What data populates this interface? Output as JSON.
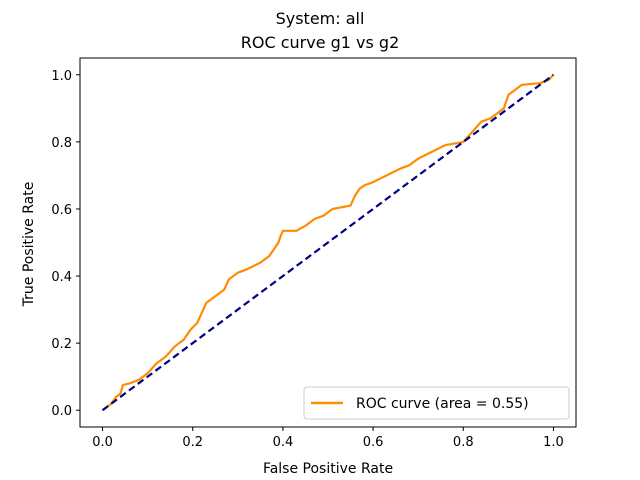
{
  "chart_data": {
    "type": "line",
    "title": "System: all",
    "subtitle": "ROC curve g1 vs g2",
    "xlabel": "False Positive Rate",
    "ylabel": "True Positive Rate",
    "xlim": [
      -0.05,
      1.05
    ],
    "ylim": [
      -0.05,
      1.05
    ],
    "xticks": [
      "0.0",
      "0.2",
      "0.4",
      "0.6",
      "0.8",
      "1.0"
    ],
    "yticks": [
      "0.0",
      "0.2",
      "0.4",
      "0.6",
      "0.8",
      "1.0"
    ],
    "grid": false,
    "legend": {
      "placement": "lower-right",
      "entries": [
        "ROC curve (area = 0.55)"
      ]
    },
    "series": [
      {
        "name": "ROC curve (area = 0.55)",
        "color": "#ff8c00",
        "style": "solid",
        "x": [
          0.0,
          0.01,
          0.02,
          0.03,
          0.04,
          0.045,
          0.06,
          0.08,
          0.1,
          0.12,
          0.14,
          0.16,
          0.18,
          0.195,
          0.21,
          0.22,
          0.23,
          0.25,
          0.27,
          0.28,
          0.3,
          0.32,
          0.35,
          0.37,
          0.38,
          0.39,
          0.395,
          0.4,
          0.43,
          0.45,
          0.47,
          0.49,
          0.51,
          0.55,
          0.56,
          0.57,
          0.58,
          0.6,
          0.63,
          0.66,
          0.68,
          0.7,
          0.73,
          0.76,
          0.8,
          0.82,
          0.84,
          0.86,
          0.88,
          0.89,
          0.9,
          0.91,
          0.93,
          0.97,
          0.99,
          1.0
        ],
        "y": [
          0.0,
          0.01,
          0.02,
          0.04,
          0.05,
          0.075,
          0.08,
          0.09,
          0.11,
          0.14,
          0.16,
          0.19,
          0.21,
          0.24,
          0.26,
          0.29,
          0.32,
          0.34,
          0.36,
          0.39,
          0.41,
          0.42,
          0.44,
          0.46,
          0.48,
          0.5,
          0.52,
          0.535,
          0.535,
          0.55,
          0.57,
          0.58,
          0.6,
          0.61,
          0.64,
          0.66,
          0.67,
          0.68,
          0.7,
          0.72,
          0.73,
          0.75,
          0.77,
          0.79,
          0.8,
          0.83,
          0.86,
          0.87,
          0.89,
          0.9,
          0.94,
          0.95,
          0.97,
          0.975,
          0.985,
          1.0
        ]
      },
      {
        "name": "",
        "color": "#000080",
        "style": "dashed",
        "x": [
          0.0,
          1.0
        ],
        "y": [
          0.0,
          1.0
        ]
      }
    ]
  }
}
